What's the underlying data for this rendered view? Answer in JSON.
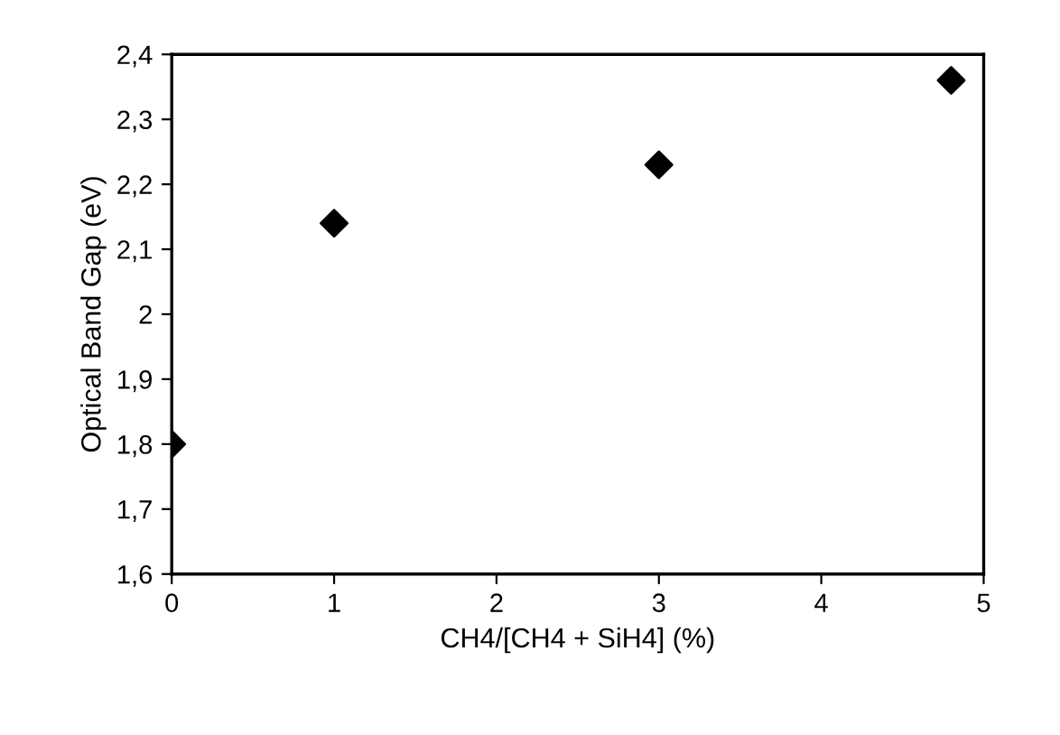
{
  "chart_data": {
    "type": "scatter",
    "xlabel": "CH4/[CH4 + SiH4] (%)",
    "ylabel": "Optical Band Gap (eV)",
    "x": [
      0,
      1,
      3,
      4.8
    ],
    "series": [
      {
        "color": "#000000",
        "values": [
          1.8,
          2.14,
          2.23,
          2.36
        ]
      }
    ],
    "marker": "diamond",
    "grid": false,
    "legend": false,
    "xlim": [
      0,
      5
    ],
    "xticks": [
      0,
      1,
      2,
      3,
      4,
      5
    ],
    "ylim": [
      1.6,
      2.4
    ],
    "yticks": [
      {
        "value": 1.6,
        "label": "1,6"
      },
      {
        "value": 1.7,
        "label": "1,7"
      },
      {
        "value": 1.8,
        "label": "1,8"
      },
      {
        "value": 1.9,
        "label": "1,9"
      },
      2,
      {
        "value": 2.1,
        "label": "2,1"
      },
      {
        "value": 2.2,
        "label": "2,2"
      },
      {
        "value": 2.3,
        "label": "2,3"
      },
      {
        "value": 2.4,
        "label": "2,4"
      }
    ]
  }
}
